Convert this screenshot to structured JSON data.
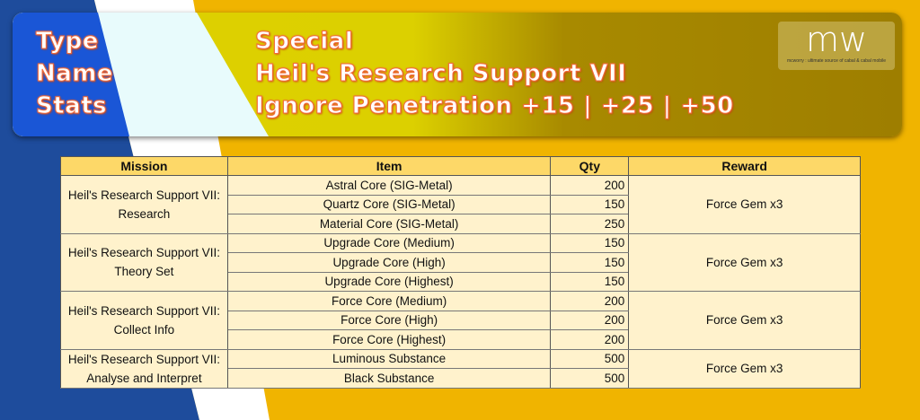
{
  "banner": {
    "labels": [
      "Type",
      "Name",
      "Stats"
    ],
    "values": [
      "Special",
      "Heil's Research Support VII",
      "Ignore Penetration +15 |  +25 |  +50"
    ],
    "logo": {
      "text": "mw",
      "tagline": "mcworry : ultimate source of cabal & cabal mobile"
    }
  },
  "table": {
    "headers": [
      "Mission",
      "Item",
      "Qty",
      "Reward"
    ],
    "groups": [
      {
        "mission": "Heil's Research Support VII: Research",
        "reward": "Force Gem x3",
        "items": [
          [
            "Astral Core (SIG-Metal)",
            "200"
          ],
          [
            "Quartz Core (SIG-Metal)",
            "150"
          ],
          [
            "Material Core (SIG-Metal)",
            "250"
          ]
        ]
      },
      {
        "mission": "Heil's Research Support VII: Theory Set",
        "reward": "Force Gem x3",
        "items": [
          [
            "Upgrade Core (Medium)",
            "150"
          ],
          [
            "Upgrade Core (High)",
            "150"
          ],
          [
            "Upgrade Core (Highest)",
            "150"
          ]
        ]
      },
      {
        "mission": "Heil's Research Support VII: Collect Info",
        "reward": "Force Gem x3",
        "items": [
          [
            "Force Core (Medium)",
            "200"
          ],
          [
            "Force Core (High)",
            "200"
          ],
          [
            "Force Core (Highest)",
            "200"
          ]
        ]
      },
      {
        "mission": "Heil's Research Support VII: Analyse and Interpret",
        "reward": "Force Gem x3",
        "items": [
          [
            "Luminous Substance",
            "500"
          ],
          [
            "Black Substance",
            "500"
          ]
        ]
      }
    ]
  },
  "colors": {
    "header": "#fdd868",
    "cell": "#fff2cc",
    "blue": "#1e4c9c",
    "yellow": "#f0b400"
  }
}
